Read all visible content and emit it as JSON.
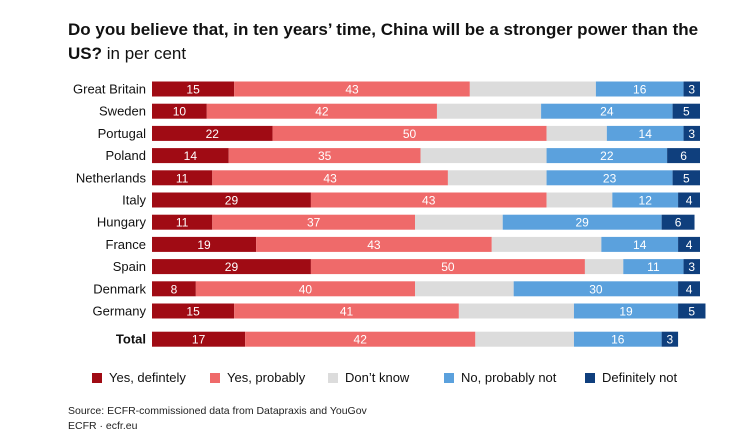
{
  "title": {
    "bold": "Do you believe that, in ten years’ time, China will be a stronger power than the US?",
    "unit": "in per cent"
  },
  "colors": {
    "yes_definitely": "#a00b14",
    "yes_probably": "#ef6a6a",
    "dont_know": "#dcdcdc",
    "no_probably_not": "#5ba1dd",
    "definitely_not": "#0f3f7d"
  },
  "legend": [
    {
      "key": "yes_definitely",
      "label": "Yes, defintely"
    },
    {
      "key": "yes_probably",
      "label": "Yes, probably"
    },
    {
      "key": "dont_know",
      "label": "Don’t know"
    },
    {
      "key": "no_probably_not",
      "label": "No, probably not"
    },
    {
      "key": "definitely_not",
      "label": "Definitely not"
    }
  ],
  "source": {
    "line1": "Source: ECFR-commissioned data from Datapraxis and YouGov",
    "line2": "ECFR · ecfr.eu"
  },
  "chart_data": {
    "type": "bar",
    "orientation": "horizontal",
    "stacked": true,
    "normalized_percent": true,
    "categories": [
      "Great Britain",
      "Sweden",
      "Portugal",
      "Poland",
      "Netherlands",
      "Italy",
      "Hungary",
      "France",
      "Spain",
      "Denmark",
      "Germany",
      "Total"
    ],
    "series": [
      {
        "key": "yes_definitely",
        "name": "Yes, defintely",
        "values": [
          15,
          10,
          22,
          14,
          11,
          29,
          11,
          19,
          29,
          8,
          15,
          17
        ]
      },
      {
        "key": "yes_probably",
        "name": "Yes, probably",
        "values": [
          43,
          42,
          50,
          35,
          43,
          43,
          37,
          43,
          50,
          40,
          41,
          42
        ]
      },
      {
        "key": "dont_know",
        "name": "Don’t know",
        "values": [
          23,
          19,
          11,
          23,
          18,
          12,
          16,
          20,
          7,
          18,
          21,
          18
        ],
        "labels_shown": false
      },
      {
        "key": "no_probably_not",
        "name": "No, probably not",
        "values": [
          16,
          24,
          14,
          22,
          23,
          12,
          29,
          14,
          11,
          30,
          19,
          16
        ]
      },
      {
        "key": "definitely_not",
        "name": "Definitely not",
        "values": [
          3,
          5,
          3,
          6,
          5,
          4,
          6,
          4,
          3,
          4,
          5,
          3
        ]
      }
    ],
    "xlim": [
      0,
      100
    ],
    "grid": false,
    "legend_position": "bottom",
    "bold_categories": [
      "Total"
    ]
  }
}
